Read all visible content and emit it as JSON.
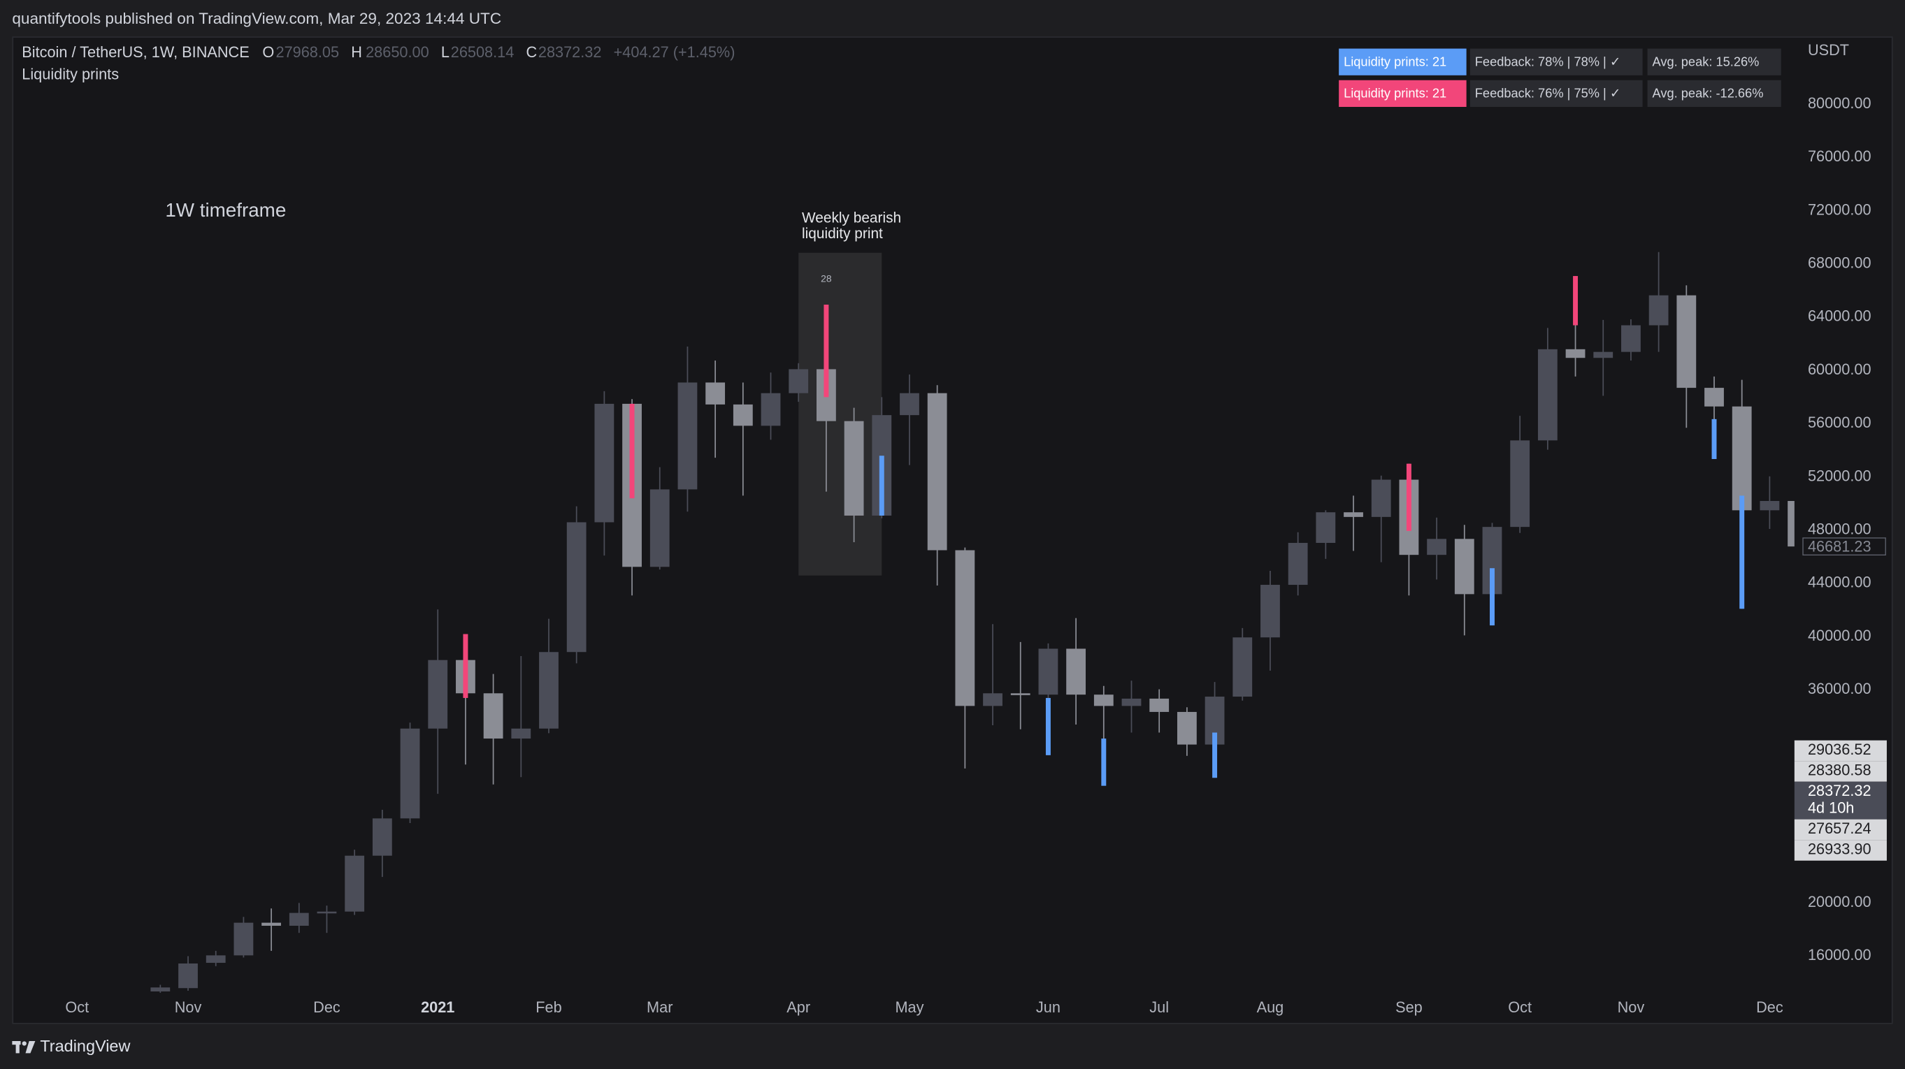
{
  "header": {
    "published": "quantifytools published on TradingView.com, Mar 29, 2023 14:44 UTC"
  },
  "legend": {
    "symbol": "Bitcoin / TetherUS, 1W, BINANCE",
    "open_label": "O",
    "open": "27968.05",
    "high_label": "H",
    "high": "28650.00",
    "low_label": "L",
    "low": "26508.14",
    "close_label": "C",
    "close": "28372.32",
    "change": "+404.27 (+1.45%)",
    "indicator": "Liquidity prints"
  },
  "stats_table": {
    "rows": [
      {
        "color": "#5b9cf6",
        "cells": [
          "Liquidity prints: 21",
          "Feedback: 78% | 78% | ✓",
          "Avg. peak: 15.26%"
        ]
      },
      {
        "color": "#f2467a",
        "cells": [
          "Liquidity prints: 21",
          "Feedback: 76% | 75% | ✓",
          "Avg. peak: -12.66%"
        ]
      }
    ]
  },
  "footer": {
    "brand": "TradingView"
  },
  "chart_data": {
    "type": "candlestick",
    "currency": "USDT",
    "bull_color": "#4b4d58",
    "bear_color": "#8b8d95",
    "candles": {
      "open": [
        13250,
        13500,
        15400,
        15960,
        18414,
        18185,
        19150,
        19250,
        23450,
        26250,
        33000,
        38150,
        35650,
        32250,
        33000,
        38750,
        48500,
        57400,
        45150,
        50970,
        59000,
        57350,
        55750,
        58200,
        60000,
        56100,
        49000,
        56550,
        58200,
        46400,
        34700,
        35650,
        35550,
        39000,
        35550,
        34700,
        35250,
        34250,
        31800,
        35400,
        39850,
        43800,
        46950,
        49250,
        48900,
        51700,
        46050,
        47250,
        43100,
        48150,
        54650,
        61500,
        60850,
        61300,
        63300,
        65550,
        58600,
        57200,
        49400,
        50100
      ],
      "high": [
        13750,
        15900,
        16300,
        18850,
        19484,
        19900,
        19700,
        23900,
        26900,
        33450,
        41950,
        39900,
        37100,
        38450,
        41250,
        49700,
        58350,
        57750,
        52640,
        61700,
        60650,
        59000,
        59750,
        60450,
        64850,
        57100,
        57900,
        59600,
        58800,
        46600,
        40850,
        39500,
        39400,
        41300,
        36200,
        36600,
        35950,
        34600,
        36500,
        40550,
        44850,
        47750,
        49400,
        50500,
        52000,
        52900,
        48850,
        48300,
        48450,
        56500,
        63100,
        67000,
        63700,
        63750,
        68800,
        66300,
        59450,
        59200,
        51950,
        50400
      ],
      "low": [
        13150,
        13300,
        15150,
        15800,
        16300,
        17650,
        17650,
        19000,
        21850,
        25900,
        28100,
        30300,
        28800,
        29350,
        32650,
        37900,
        46000,
        43000,
        44950,
        49300,
        53350,
        50500,
        54700,
        57550,
        50800,
        47000,
        48800,
        52800,
        43750,
        30000,
        33250,
        32950,
        31000,
        33300,
        28800,
        32700,
        32700,
        30950,
        29300,
        35100,
        37350,
        43000,
        45750,
        46350,
        45500,
        43000,
        44200,
        40000,
        40750,
        47700,
        53950,
        59450,
        58000,
        60650,
        61300,
        55600,
        53250,
        42000,
        48000,
        46000
      ],
      "close": [
        13550,
        15350,
        15960,
        18414,
        18185,
        19150,
        19250,
        23450,
        26250,
        33000,
        38150,
        35650,
        32250,
        33000,
        38750,
        48500,
        57400,
        45150,
        50970,
        59000,
        57350,
        55750,
        58200,
        60000,
        56100,
        49000,
        56550,
        58200,
        46400,
        34700,
        35650,
        35550,
        39000,
        35550,
        34700,
        35250,
        34250,
        31800,
        35400,
        39850,
        43800,
        46950,
        49250,
        48900,
        51700,
        46050,
        47250,
        43100,
        48150,
        54650,
        61500,
        60850,
        61300,
        63300,
        65550,
        58600,
        57200,
        49400,
        50100,
        46681.23
      ]
    },
    "liquidity_prints": [
      {
        "color": "#f2467a",
        "candles": [
          11,
          17,
          24,
          45,
          51
        ],
        "top": [
          40100,
          57400,
          64850,
          52900,
          67000
        ],
        "bottom": [
          35300,
          50300,
          57900,
          47850,
          63300
        ]
      },
      {
        "color": "#5b9cf6",
        "candles": [
          26,
          32,
          34,
          38,
          48,
          56,
          57
        ],
        "top": [
          53500,
          35300,
          32250,
          32700,
          45050,
          56250,
          50500
        ],
        "bottom": [
          49000,
          31000,
          28700,
          29300,
          40750,
          53250,
          42000
        ]
      }
    ],
    "highlight": {
      "from": 23,
      "to": 26,
      "top": 68750,
      "bottom": 44500,
      "label": "28"
    },
    "annotations": {
      "timeframe": "1W timeframe",
      "print_note": [
        "Weekly bearish",
        "liquidity print"
      ]
    },
    "xlim": [
      -5.34,
      59.2
    ],
    "xticks": [
      {
        "value": -3,
        "label": "Oct"
      },
      {
        "value": 1,
        "label": "Nov"
      },
      {
        "value": 6,
        "label": "Dec"
      },
      {
        "value": 10,
        "label": "2021"
      },
      {
        "value": 14,
        "label": "Feb"
      },
      {
        "value": 18,
        "label": "Mar"
      },
      {
        "value": 23,
        "label": "Apr"
      },
      {
        "value": 27,
        "label": "May"
      },
      {
        "value": 32,
        "label": "Jun"
      },
      {
        "value": 36,
        "label": "Jul"
      },
      {
        "value": 40,
        "label": "Aug"
      },
      {
        "value": 45,
        "label": "Sep"
      },
      {
        "value": 49,
        "label": "Oct"
      },
      {
        "value": 53,
        "label": "Nov"
      },
      {
        "value": 58,
        "label": "Dec"
      }
    ],
    "ylim": [
      10800,
      85000
    ],
    "yticks": [
      {
        "value": 16000,
        "label": "16000.00"
      },
      {
        "value": 20000,
        "label": "20000.00"
      },
      {
        "value": 36000,
        "label": "36000.00"
      },
      {
        "value": 40000,
        "label": "40000.00"
      },
      {
        "value": 44000,
        "label": "44000.00"
      },
      {
        "value": 48000,
        "label": "48000.00"
      },
      {
        "value": 52000,
        "label": "52000.00"
      },
      {
        "value": 56000,
        "label": "56000.00"
      },
      {
        "value": 60000,
        "label": "60000.00"
      },
      {
        "value": 64000,
        "label": "64000.00"
      },
      {
        "value": 68000,
        "label": "68000.00"
      },
      {
        "value": 72000,
        "label": "72000.00"
      },
      {
        "value": 76000,
        "label": "76000.00"
      },
      {
        "value": 80000,
        "label": "80000.00"
      }
    ],
    "price_labels": [
      {
        "value": 29036.52
      },
      {
        "value": 28380.58
      },
      {
        "value": 28372.32,
        "countdown": "4d 10h"
      },
      {
        "value": 27657.24
      },
      {
        "value": 26933.9,
        "label": "26933.90"
      }
    ],
    "grid": false
  }
}
